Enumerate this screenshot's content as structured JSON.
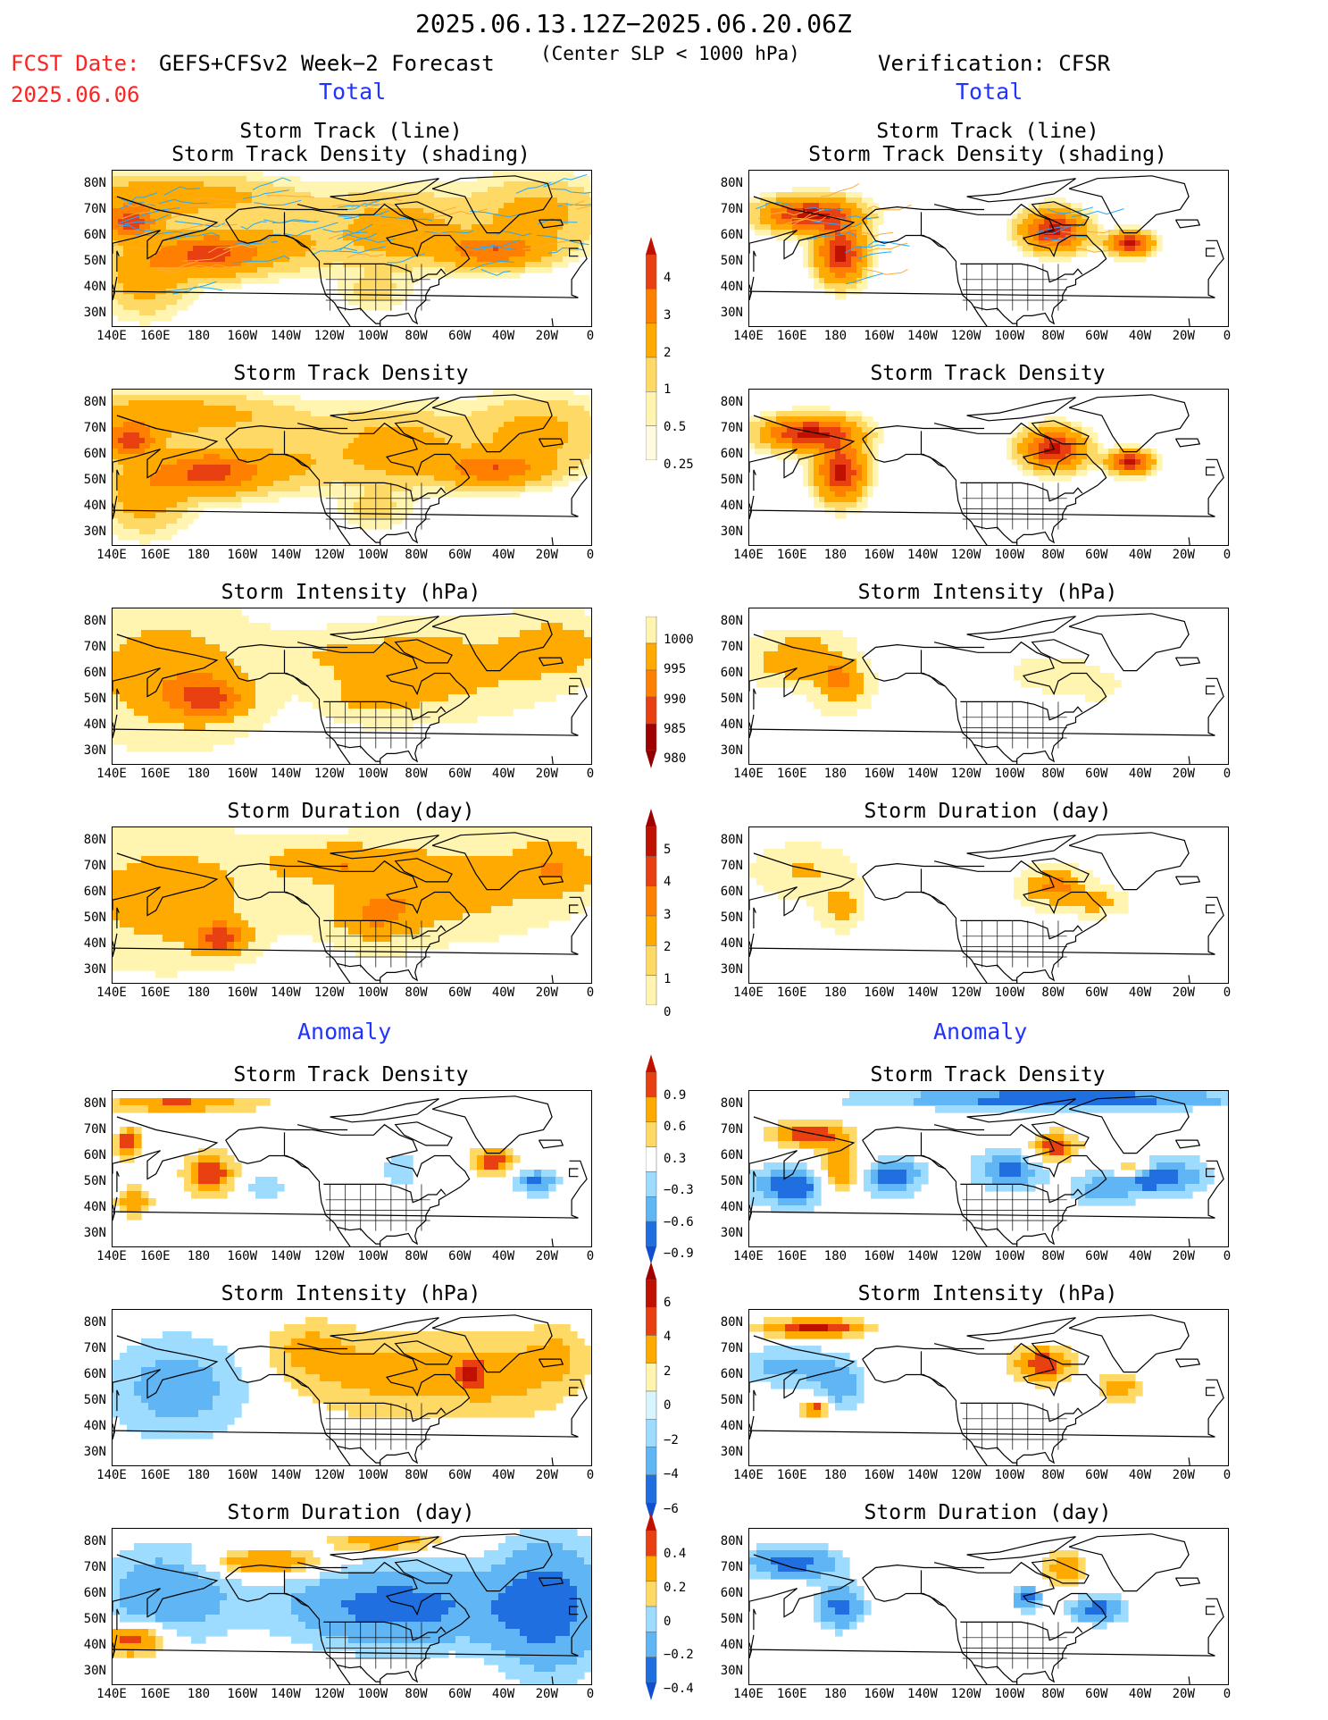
{
  "header": {
    "title": "2025.06.13.12Z−2025.06.20.06Z",
    "fcst_label": "FCST Date:",
    "fcst_date": "2025.06.06",
    "forecast_desc": "GEFS+CFSv2 Week−2 Forecast",
    "criterion": "(Center SLP < 1000 hPa)",
    "verification": "Verification: CFSR"
  },
  "sections": {
    "total": "Total",
    "anomaly": "Anomaly"
  },
  "axis": {
    "lat_ticks": [
      "80N",
      "70N",
      "60N",
      "50N",
      "40N",
      "30N"
    ],
    "lon_ticks": [
      "140E",
      "160E",
      "180",
      "160W",
      "140W",
      "120W",
      "100W",
      "80W",
      "60W",
      "40W",
      "20W",
      "0"
    ]
  },
  "panel_titles": {
    "track_line": "Storm Track (line)",
    "track_shading": "Storm Track Density (shading)",
    "density": "Storm Track Density",
    "intensity": "Storm Intensity (hPa)",
    "duration": "Storm Duration (day)"
  },
  "colorbars": {
    "density": [
      "4",
      "3",
      "2",
      "1",
      "0.5",
      "0.25"
    ],
    "intensity": [
      "1000",
      "995",
      "990",
      "985",
      "980"
    ],
    "duration": [
      "5",
      "4",
      "3",
      "2",
      "1",
      "0"
    ],
    "density_anom": [
      "0.9",
      "0.6",
      "0.3",
      "−0.3",
      "−0.6",
      "−0.9"
    ],
    "intensity_anom": [
      "6",
      "4",
      "2",
      "0",
      "−2",
      "−4",
      "−6"
    ],
    "duration_anom": [
      "0.4",
      "0.2",
      "0",
      "−0.2",
      "−0.4"
    ]
  },
  "colors": {
    "warm": [
      "#fff5b0",
      "#ffd966",
      "#ffaa00",
      "#ff8000",
      "#e84010",
      "#c01000"
    ],
    "cool": [
      "#d8f4ff",
      "#9ddcff",
      "#60b6f5",
      "#1f6fe0"
    ],
    "blue_text": "#2233ff",
    "red_text": "#ff2222",
    "track_orange": "#ffaa33",
    "track_blue": "#22aaff"
  },
  "chart_data": [
    {
      "type": "heatmap",
      "panel": "forecast-total-track-density-shading",
      "title": "Storm Track (line) / Storm Track Density (shading)",
      "levels": [
        0.25,
        0.5,
        1,
        2,
        3,
        4
      ],
      "maxima": [
        {
          "lon": -175,
          "lat": 53,
          "value": 3
        },
        {
          "lon": 148,
          "lat": 65,
          "value": 3
        },
        {
          "lon": -45,
          "lat": 63,
          "value": 2
        }
      ]
    },
    {
      "type": "heatmap",
      "panel": "cfsr-total-track-density-shading",
      "title": "Storm Track (line) / Storm Track Density (shading)",
      "levels": [
        0.25,
        0.5,
        1,
        2,
        3,
        4
      ],
      "maxima": [
        {
          "lon": 168,
          "lat": 69,
          "value": 4
        },
        {
          "lon": -178,
          "lat": 55,
          "value": 4
        },
        {
          "lon": -80,
          "lat": 63,
          "value": 4
        },
        {
          "lon": -45,
          "lat": 58,
          "value": 4
        }
      ]
    },
    {
      "type": "heatmap",
      "panel": "forecast-total-density",
      "title": "Storm Track Density",
      "levels": [
        0.25,
        0.5,
        1,
        2,
        3,
        4
      ],
      "maxima": [
        {
          "lon": -175,
          "lat": 53,
          "value": 3
        },
        {
          "lon": 148,
          "lat": 65,
          "value": 3
        },
        {
          "lon": -55,
          "lat": 55,
          "value": 3
        }
      ]
    },
    {
      "type": "heatmap",
      "panel": "cfsr-total-density",
      "title": "Storm Track Density",
      "levels": [
        0.25,
        0.5,
        1,
        2,
        3,
        4
      ],
      "maxima": [
        {
          "lon": 168,
          "lat": 68,
          "value": 4
        },
        {
          "lon": -178,
          "lat": 54,
          "value": 4
        },
        {
          "lon": -80,
          "lat": 63,
          "value": 4
        },
        {
          "lon": -45,
          "lat": 58,
          "value": 4
        }
      ]
    },
    {
      "type": "heatmap",
      "panel": "forecast-total-intensity",
      "title": "Storm Intensity (hPa)",
      "levels": [
        980,
        985,
        990,
        995,
        1000
      ]
    },
    {
      "type": "heatmap",
      "panel": "cfsr-total-intensity",
      "title": "Storm Intensity (hPa)",
      "levels": [
        980,
        985,
        990,
        995,
        1000
      ]
    },
    {
      "type": "heatmap",
      "panel": "forecast-total-duration",
      "title": "Storm Duration (day)",
      "levels": [
        0,
        1,
        2,
        3,
        4,
        5
      ]
    },
    {
      "type": "heatmap",
      "panel": "cfsr-total-duration",
      "title": "Storm Duration (day)",
      "levels": [
        0,
        1,
        2,
        3,
        4,
        5
      ]
    },
    {
      "type": "heatmap",
      "panel": "forecast-anomaly-density",
      "title": "Storm Track Density",
      "levels": [
        -0.9,
        -0.6,
        -0.3,
        0.3,
        0.6,
        0.9
      ]
    },
    {
      "type": "heatmap",
      "panel": "cfsr-anomaly-density",
      "title": "Storm Track Density",
      "levels": [
        -0.9,
        -0.6,
        -0.3,
        0.3,
        0.6,
        0.9
      ]
    },
    {
      "type": "heatmap",
      "panel": "forecast-anomaly-intensity",
      "title": "Storm Intensity (hPa)",
      "levels": [
        -6,
        -4,
        -2,
        0,
        2,
        4,
        6
      ]
    },
    {
      "type": "heatmap",
      "panel": "cfsr-anomaly-intensity",
      "title": "Storm Intensity (hPa)",
      "levels": [
        -6,
        -4,
        -2,
        0,
        2,
        4,
        6
      ]
    },
    {
      "type": "heatmap",
      "panel": "forecast-anomaly-duration",
      "title": "Storm Duration (day)",
      "levels": [
        -0.4,
        -0.2,
        0,
        0.2,
        0.4
      ]
    },
    {
      "type": "heatmap",
      "panel": "cfsr-anomaly-duration",
      "title": "Storm Duration (day)",
      "levels": [
        -0.4,
        -0.2,
        0,
        0.2,
        0.4
      ]
    }
  ]
}
